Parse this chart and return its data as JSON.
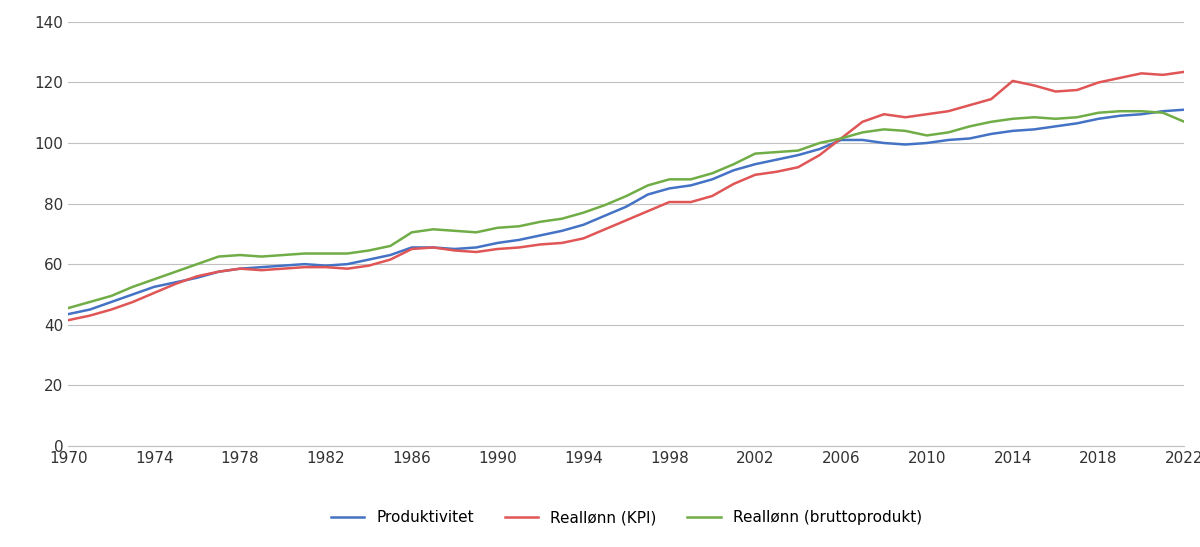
{
  "years": [
    1970,
    1971,
    1972,
    1973,
    1974,
    1975,
    1976,
    1977,
    1978,
    1979,
    1980,
    1981,
    1982,
    1983,
    1984,
    1985,
    1986,
    1987,
    1988,
    1989,
    1990,
    1991,
    1992,
    1993,
    1994,
    1995,
    1996,
    1997,
    1998,
    1999,
    2000,
    2001,
    2002,
    2003,
    2004,
    2005,
    2006,
    2007,
    2008,
    2009,
    2010,
    2011,
    2012,
    2013,
    2014,
    2015,
    2016,
    2017,
    2018,
    2019,
    2020,
    2021,
    2022
  ],
  "produktivitet": [
    43.5,
    45.0,
    47.5,
    50.0,
    52.5,
    54.0,
    55.5,
    57.5,
    58.5,
    59.0,
    59.5,
    60.0,
    59.5,
    60.0,
    61.5,
    63.0,
    65.5,
    65.5,
    65.0,
    65.5,
    67.0,
    68.0,
    69.5,
    71.0,
    73.0,
    76.0,
    79.0,
    83.0,
    85.0,
    86.0,
    88.0,
    91.0,
    93.0,
    94.5,
    96.0,
    98.0,
    101.0,
    101.0,
    100.0,
    99.5,
    100.0,
    101.0,
    101.5,
    103.0,
    104.0,
    104.5,
    105.5,
    106.5,
    108.0,
    109.0,
    109.5,
    110.5,
    111.0
  ],
  "reallenn_kpi": [
    41.5,
    43.0,
    45.0,
    47.5,
    50.5,
    53.5,
    56.0,
    57.5,
    58.5,
    58.0,
    58.5,
    59.0,
    59.0,
    58.5,
    59.5,
    61.5,
    65.0,
    65.5,
    64.5,
    64.0,
    65.0,
    65.5,
    66.5,
    67.0,
    68.5,
    71.5,
    74.5,
    77.5,
    80.5,
    80.5,
    82.5,
    86.5,
    89.5,
    90.5,
    92.0,
    96.0,
    101.5,
    107.0,
    109.5,
    108.5,
    109.5,
    110.5,
    112.5,
    114.5,
    120.5,
    119.0,
    117.0,
    117.5,
    120.0,
    121.5,
    123.0,
    122.5,
    123.5
  ],
  "reallenn_brutto": [
    45.5,
    47.5,
    49.5,
    52.5,
    55.0,
    57.5,
    60.0,
    62.5,
    63.0,
    62.5,
    63.0,
    63.5,
    63.5,
    63.5,
    64.5,
    66.0,
    70.5,
    71.5,
    71.0,
    70.5,
    72.0,
    72.5,
    74.0,
    75.0,
    77.0,
    79.5,
    82.5,
    86.0,
    88.0,
    88.0,
    90.0,
    93.0,
    96.5,
    97.0,
    97.5,
    100.0,
    101.5,
    103.5,
    104.5,
    104.0,
    102.5,
    103.5,
    105.5,
    107.0,
    108.0,
    108.5,
    108.0,
    108.5,
    110.0,
    110.5,
    110.5,
    110.0,
    107.0
  ],
  "colors": {
    "produktivitet": "#4472c4",
    "reallenn_kpi": "#e05555",
    "reallenn_brutto": "#70ad47"
  },
  "ylim": [
    0,
    140
  ],
  "yticks": [
    0,
    20,
    40,
    60,
    80,
    100,
    120,
    140
  ],
  "xticks": [
    1970,
    1974,
    1978,
    1982,
    1986,
    1990,
    1994,
    1998,
    2002,
    2006,
    2010,
    2014,
    2018,
    2022
  ],
  "legend_labels": [
    "Produktivitet",
    "Reallønn (KPI)",
    "Reallønn (bruttoprodukt)"
  ],
  "line_width": 1.8,
  "background_color": "#ffffff",
  "grid_color": "#c0c0c0",
  "tick_color": "#333333",
  "tick_fontsize": 11
}
